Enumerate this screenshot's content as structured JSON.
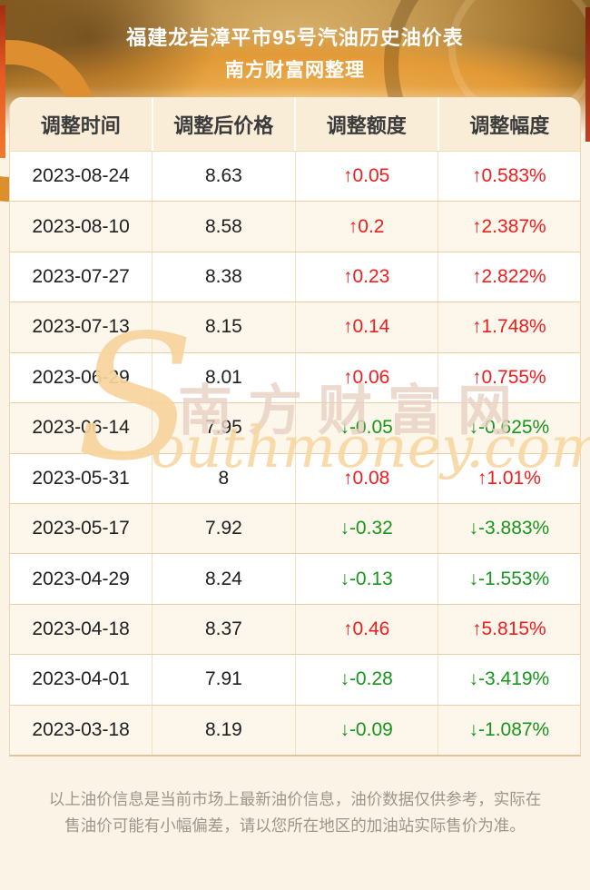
{
  "banner": {
    "title": "福建龙岩漳平市95号汽油历史油价表",
    "subtitle": "南方财富网整理"
  },
  "table": {
    "headers": [
      "调整时间",
      "调整后价格",
      "调整额度",
      "调整幅度"
    ],
    "rows": [
      {
        "date": "2023-08-24",
        "price": "8.63",
        "amount": "↑0.05",
        "rate": "↑0.583%",
        "direction": "up"
      },
      {
        "date": "2023-08-10",
        "price": "8.58",
        "amount": "↑0.2",
        "rate": "↑2.387%",
        "direction": "up"
      },
      {
        "date": "2023-07-27",
        "price": "8.38",
        "amount": "↑0.23",
        "rate": "↑2.822%",
        "direction": "up"
      },
      {
        "date": "2023-07-13",
        "price": "8.15",
        "amount": "↑0.14",
        "rate": "↑1.748%",
        "direction": "up"
      },
      {
        "date": "2023-06-29",
        "price": "8.01",
        "amount": "↑0.06",
        "rate": "↑0.755%",
        "direction": "up"
      },
      {
        "date": "2023-06-14",
        "price": "7.95",
        "amount": "↓-0.05",
        "rate": "↓-0.625%",
        "direction": "down"
      },
      {
        "date": "2023-05-31",
        "price": "8",
        "amount": "↑0.08",
        "rate": "↑1.01%",
        "direction": "up"
      },
      {
        "date": "2023-05-17",
        "price": "7.92",
        "amount": "↓-0.32",
        "rate": "↓-3.883%",
        "direction": "down"
      },
      {
        "date": "2023-04-29",
        "price": "8.24",
        "amount": "↓-0.13",
        "rate": "↓-1.553%",
        "direction": "down"
      },
      {
        "date": "2023-04-18",
        "price": "8.37",
        "amount": "↑0.46",
        "rate": "↑5.815%",
        "direction": "up"
      },
      {
        "date": "2023-04-01",
        "price": "7.91",
        "amount": "↓-0.28",
        "rate": "↓-3.419%",
        "direction": "down"
      },
      {
        "date": "2023-03-18",
        "price": "8.19",
        "amount": "↓-0.09",
        "rate": "↓-1.087%",
        "direction": "down"
      }
    ]
  },
  "watermark": {
    "initial": "S",
    "cn": "南方财富网",
    "en": "outhmoney.com"
  },
  "footer": {
    "disclaimer": "以上油价信息是当前市场上最新油价信息，油价数据仅供参考，实际在售油价可能有小幅偏差，请以您所在地区的加油站实际售价为准。"
  },
  "colors": {
    "up": "#f21c1c",
    "down": "#17951c",
    "accent_orange": "#dd8e2f",
    "header_bg": "#f9edd8",
    "page_bg": "#fbf3e6"
  }
}
